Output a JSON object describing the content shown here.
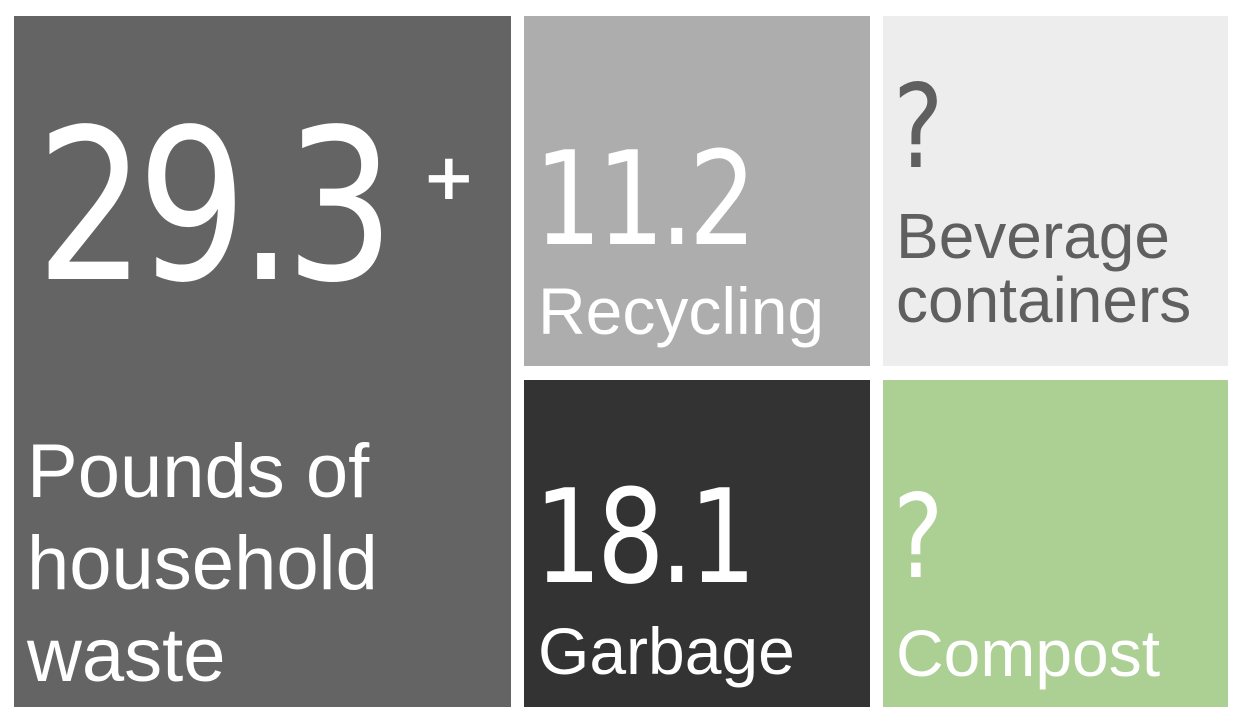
{
  "tiles": {
    "total": {
      "value": "29.3",
      "superscript": "+",
      "label": "Pounds of household waste",
      "color": "#646464"
    },
    "recycling": {
      "value": "11.2",
      "label": "Recycling",
      "color": "#adadad"
    },
    "beverage": {
      "value": "?",
      "label": "Beverage containers",
      "color": "#ededed"
    },
    "garbage": {
      "value": "18.1",
      "label": "Garbage",
      "color": "#333333"
    },
    "compost": {
      "value": "?",
      "label": "Compost",
      "color": "#accf93"
    }
  }
}
